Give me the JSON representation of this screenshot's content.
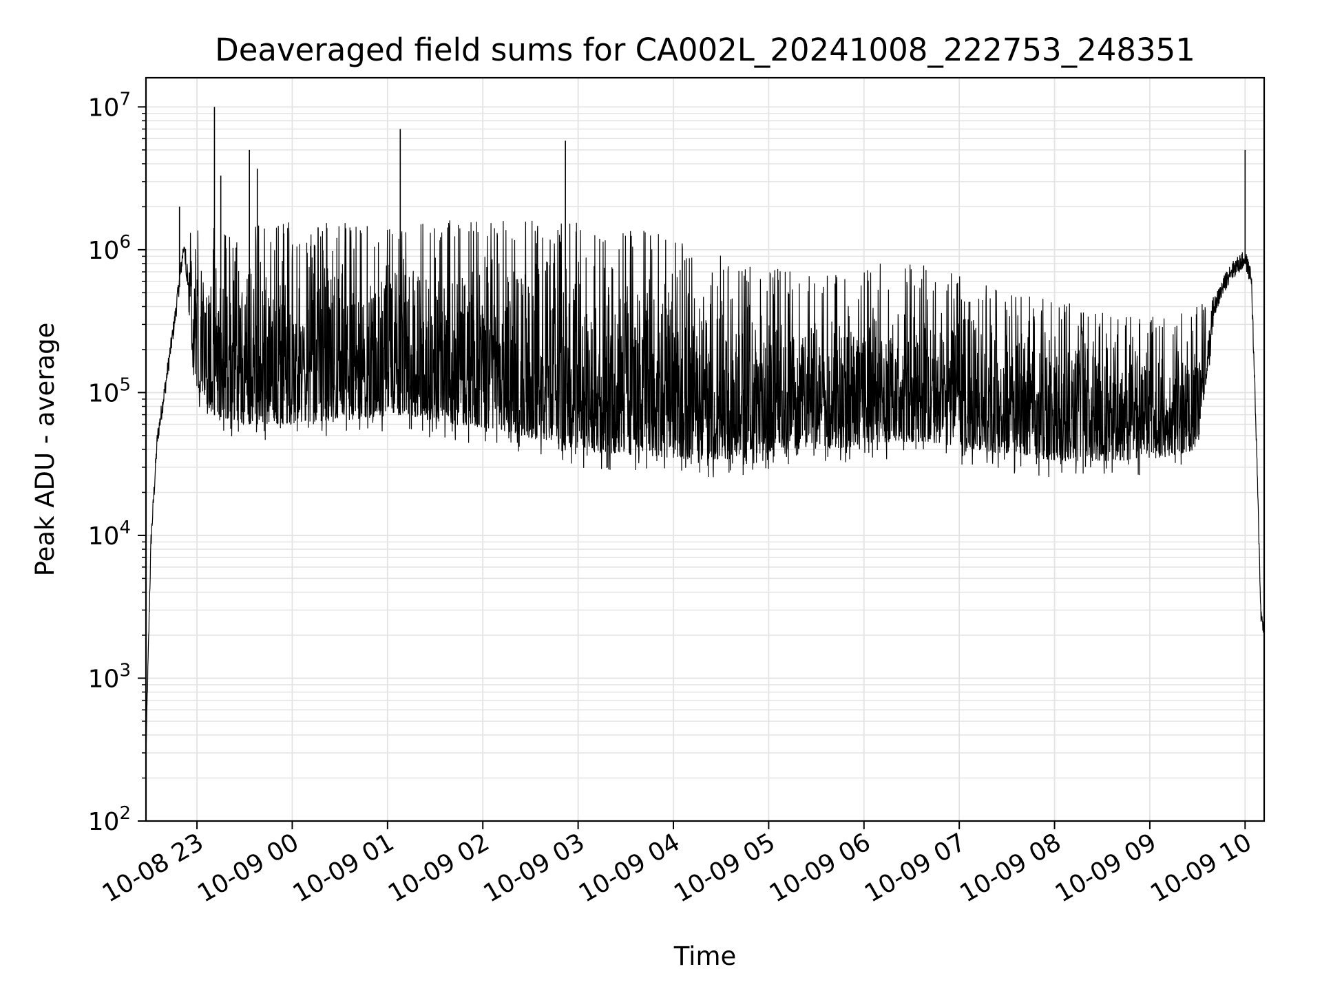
{
  "chart_data": {
    "type": "line",
    "title": "Deaveraged field sums for CA002L_20241008_222753_248351",
    "xlabel": "Time",
    "ylabel": "Peak ADU - average",
    "yscale": "log",
    "ylim": [
      100,
      16000000
    ],
    "xlim": [
      "2024-10-08 22:27:53",
      "2024-10-09 10:12:00"
    ],
    "x_ticks": [
      "10-08 23",
      "10-09 00",
      "10-09 01",
      "10-09 02",
      "10-09 03",
      "10-09 04",
      "10-09 05",
      "10-09 06",
      "10-09 07",
      "10-09 08",
      "10-09 09",
      "10-09 10"
    ],
    "y_ticks": [
      {
        "base": "10",
        "exp": "2"
      },
      {
        "base": "10",
        "exp": "3"
      },
      {
        "base": "10",
        "exp": "4"
      },
      {
        "base": "10",
        "exp": "5"
      },
      {
        "base": "10",
        "exp": "6"
      },
      {
        "base": "10",
        "exp": "7"
      }
    ],
    "grid": "major and minor",
    "line_color": "#000000",
    "envelope": [
      {
        "t": "22:27:53",
        "high": 300,
        "low": 300
      },
      {
        "t": "22:31",
        "high": 10000,
        "low": 8000
      },
      {
        "t": "22:35",
        "high": 50000,
        "low": 45000
      },
      {
        "t": "22:40",
        "high": 120000,
        "low": 100000
      },
      {
        "t": "22:46",
        "high": 350000,
        "low": 300000
      },
      {
        "t": "22:52",
        "high": 1300000,
        "low": 1000000
      },
      {
        "t": "22:58",
        "high": 1200000,
        "low": 120000
      },
      {
        "t": "23:10",
        "high": 1200000,
        "low": 70000
      },
      {
        "t": "23:30",
        "high": 1300000,
        "low": 60000
      },
      {
        "t": "23:50",
        "high": 1300000,
        "low": 60000
      },
      {
        "t": "00:15",
        "high": 1300000,
        "low": 60000
      },
      {
        "t": "00:40",
        "high": 1300000,
        "low": 65000
      },
      {
        "t": "01:10",
        "high": 1300000,
        "low": 70000
      },
      {
        "t": "01:40",
        "high": 1350000,
        "low": 60000
      },
      {
        "t": "02:10",
        "high": 1400000,
        "low": 55000
      },
      {
        "t": "02:40",
        "high": 1300000,
        "low": 45000
      },
      {
        "t": "03:10",
        "high": 1300000,
        "low": 38000
      },
      {
        "t": "03:40",
        "high": 1200000,
        "low": 36000
      },
      {
        "t": "04:10",
        "high": 900000,
        "low": 34000
      },
      {
        "t": "04:40",
        "high": 700000,
        "low": 34000
      },
      {
        "t": "05:10",
        "high": 600000,
        "low": 40000
      },
      {
        "t": "05:40",
        "high": 650000,
        "low": 40000
      },
      {
        "t": "06:10",
        "high": 700000,
        "low": 45000
      },
      {
        "t": "06:40",
        "high": 650000,
        "low": 45000
      },
      {
        "t": "07:10",
        "high": 500000,
        "low": 40000
      },
      {
        "t": "07:40",
        "high": 400000,
        "low": 35000
      },
      {
        "t": "08:10",
        "high": 350000,
        "low": 33000
      },
      {
        "t": "08:40",
        "high": 300000,
        "low": 33000
      },
      {
        "t": "09:10",
        "high": 300000,
        "low": 35000
      },
      {
        "t": "09:30",
        "high": 350000,
        "low": 40000
      },
      {
        "t": "09:40",
        "high": 500000,
        "low": 300000
      },
      {
        "t": "09:50",
        "high": 800000,
        "low": 600000
      },
      {
        "t": "10:00",
        "high": 950000,
        "low": 800000
      },
      {
        "t": "10:04",
        "high": 800000,
        "low": 500000
      },
      {
        "t": "10:07",
        "high": 60000,
        "low": 40000
      },
      {
        "t": "10:10",
        "high": 3000,
        "low": 2500
      },
      {
        "t": "10:12",
        "high": 2500,
        "low": 2000
      }
    ],
    "spikes": [
      {
        "t": "22:49",
        "value": 2000000
      },
      {
        "t": "23:11",
        "value": 10000000
      },
      {
        "t": "23:15",
        "value": 3300000
      },
      {
        "t": "23:33",
        "value": 5000000
      },
      {
        "t": "23:38",
        "value": 3700000
      },
      {
        "t": "01:08",
        "value": 7000000
      },
      {
        "t": "02:52",
        "value": 5800000
      },
      {
        "t": "10:00",
        "value": 5000000
      }
    ]
  }
}
